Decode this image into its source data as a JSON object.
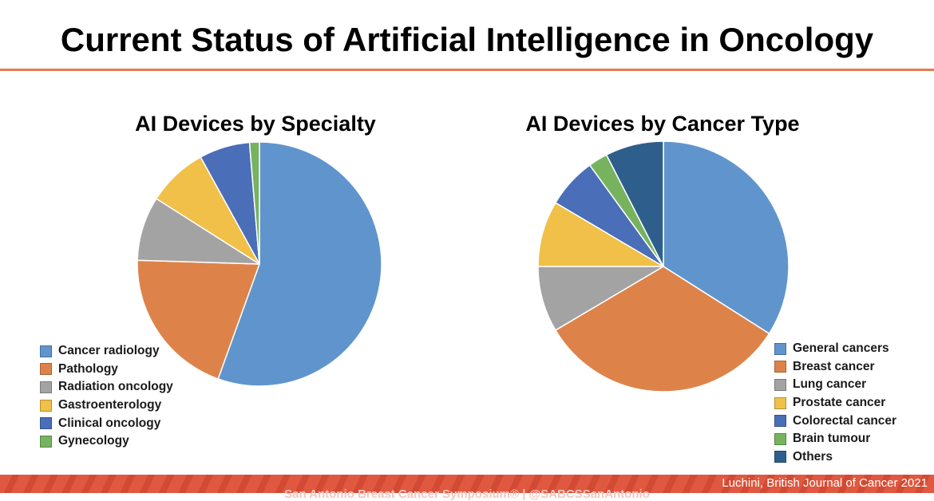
{
  "slide": {
    "title": "Current Status of Artificial Intelligence in Oncology",
    "accent_color": "#e8794f",
    "footer_color": "#d94f38",
    "footer_text": "San Antonio Breast Cancer Symposium®  |  @SABCSSanAntonio",
    "citation": "Luchini, British Journal of Cancer 2021"
  },
  "chart_data": [
    {
      "type": "pie",
      "title": "AI Devices by Specialty",
      "legend_position": "bottom-left",
      "start_angle_deg": 0,
      "direction": "clockwise",
      "slices": [
        {
          "label": "Cancer radiology",
          "value": 55.5,
          "color": "#5f95cc"
        },
        {
          "label": "Pathology",
          "value": 20.0,
          "color": "#dd834a"
        },
        {
          "label": "Radiation oncology",
          "value": 8.5,
          "color": "#a3a3a3"
        },
        {
          "label": "Gastroenterology",
          "value": 8.0,
          "color": "#f0c048"
        },
        {
          "label": "Clinical oncology",
          "value": 6.7,
          "color": "#4a6eb7"
        },
        {
          "label": "Gynecology",
          "value": 1.3,
          "color": "#77b35f"
        }
      ]
    },
    {
      "type": "pie",
      "title": "AI Devices by Cancer Type",
      "legend_position": "bottom-right",
      "start_angle_deg": 0,
      "direction": "clockwise",
      "slices": [
        {
          "label": "General cancers",
          "value": 34.0,
          "color": "#5f95cc"
        },
        {
          "label": "Breast cancer",
          "value": 32.5,
          "color": "#dd834a"
        },
        {
          "label": "Lung cancer",
          "value": 8.5,
          "color": "#a3a3a3"
        },
        {
          "label": "Prostate cancer",
          "value": 8.5,
          "color": "#f0c048"
        },
        {
          "label": "Colorectal cancer",
          "value": 6.5,
          "color": "#4a6eb7"
        },
        {
          "label": "Brain tumour",
          "value": 2.5,
          "color": "#77b35f"
        },
        {
          "label": "Others",
          "value": 7.5,
          "color": "#2e5f8c"
        }
      ]
    }
  ]
}
